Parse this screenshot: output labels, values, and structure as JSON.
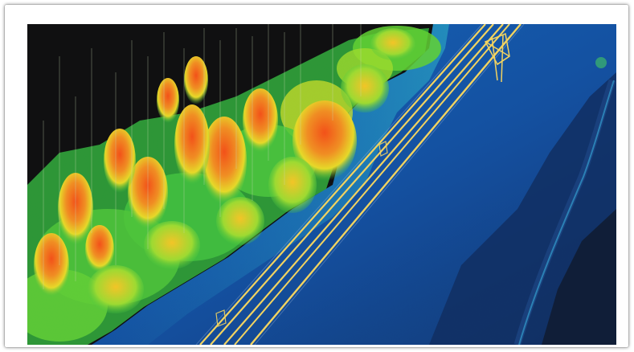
{
  "image": {
    "subject": "lidar-point-cloud-powerline-corridor",
    "colors": {
      "ground": "#0b4aa0",
      "ground_dark": "#082a66",
      "canopy_low": "#2fbf3a",
      "canopy_mid": "#e8e020",
      "canopy_high": "#f05a14",
      "wire": "#f2d25a",
      "shadow": "#05060a"
    }
  }
}
